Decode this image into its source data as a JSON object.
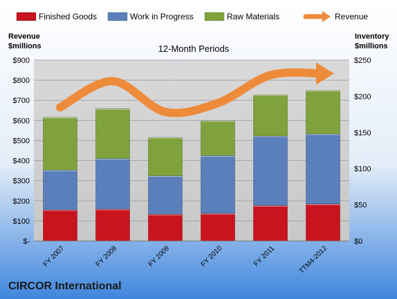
{
  "chart_data": {
    "type": "bar",
    "stacked": true,
    "title": "12-Month Periods",
    "company": "CIRCOR International",
    "categories": [
      "FY 2007",
      "FY 2008",
      "FY 2009",
      "FY 2010",
      "FY 2011",
      "TTM4-2012"
    ],
    "left_axis": {
      "label_line1": "Revenue",
      "label_line2": "$millions",
      "range": [
        0,
        900
      ],
      "ticks": [
        "$-",
        "$100",
        "$200",
        "$300",
        "$400",
        "$500",
        "$600",
        "$700",
        "$800",
        "$900"
      ]
    },
    "right_axis": {
      "label_line1": "Inventory",
      "label_line2": "$millions",
      "range": [
        0,
        250
      ],
      "ticks": [
        "$0",
        "$50",
        "$100",
        "$150",
        "$200",
        "$250"
      ]
    },
    "series": [
      {
        "name": "Finished Goods",
        "axis": "right",
        "color": "#c8141e",
        "values": [
          43,
          44,
          37,
          38,
          49,
          51
        ]
      },
      {
        "name": "Work in Progress",
        "axis": "right",
        "color": "#5b7fba",
        "values": [
          55,
          70,
          53,
          80,
          96,
          97
        ]
      },
      {
        "name": "Raw Materials",
        "axis": "right",
        "color": "#7fa23c",
        "values": [
          73,
          69,
          53,
          48,
          57,
          60
        ]
      },
      {
        "name": "Revenue",
        "axis": "left",
        "type": "line",
        "color": "#ee8b3a",
        "values": [
          665,
          795,
          642,
          686,
          825,
          833
        ]
      }
    ],
    "grid": true,
    "legend": "top"
  }
}
